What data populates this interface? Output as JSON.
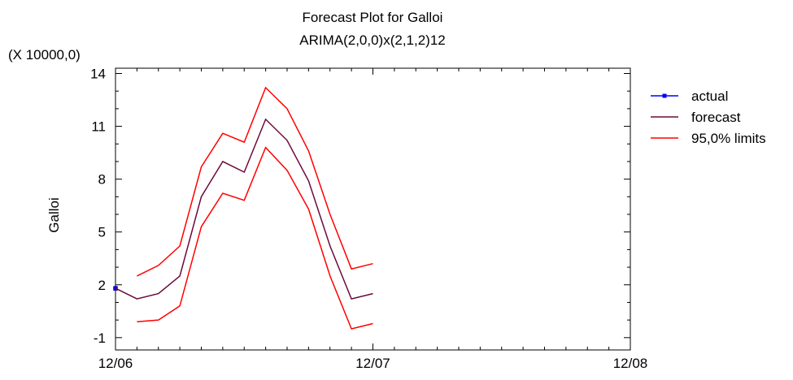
{
  "chart_data": {
    "type": "line",
    "title": "Forecast Plot for Galloi",
    "subtitle": "ARIMA(2,0,0)x(2,1,2)12",
    "ylabel": "Galloi",
    "xlabel": "",
    "y_scale_note": "(X 10000,0)",
    "ylim": [
      -1.7,
      14.3
    ],
    "xlim": [
      0,
      24
    ],
    "x_ticks": [
      {
        "value": 0,
        "label": "12/06"
      },
      {
        "value": 12,
        "label": "12/07"
      },
      {
        "value": 24,
        "label": "12/08"
      }
    ],
    "y_ticks": [
      {
        "value": -1,
        "label": "-1"
      },
      {
        "value": 2,
        "label": "2"
      },
      {
        "value": 5,
        "label": "5"
      },
      {
        "value": 8,
        "label": "8"
      },
      {
        "value": 11,
        "label": "11"
      },
      {
        "value": 14,
        "label": "14"
      }
    ],
    "legend_position": "right",
    "series": [
      {
        "name": "actual",
        "color": "#0000ff",
        "marker": "square",
        "x": [
          0
        ],
        "values": [
          1.8
        ]
      },
      {
        "name": "forecast",
        "color": "#6b0a3a",
        "x": [
          0,
          1,
          2,
          3,
          4,
          5,
          6,
          7,
          8,
          9,
          10,
          11,
          12
        ],
        "values": [
          1.8,
          1.2,
          1.5,
          2.5,
          7.0,
          9.0,
          8.4,
          11.4,
          10.2,
          7.9,
          4.2,
          1.2,
          1.5
        ]
      },
      {
        "name": "95,0% limits",
        "color": "#ff0000",
        "x": [
          1,
          2,
          3,
          4,
          5,
          6,
          7,
          8,
          9,
          10,
          11,
          12
        ],
        "values": [
          2.5,
          3.1,
          4.2,
          8.7,
          10.6,
          10.1,
          13.2,
          12.0,
          9.6,
          6.0,
          2.9,
          3.2
        ]
      },
      {
        "name": "",
        "color": "#ff0000",
        "x": [
          1,
          2,
          3,
          4,
          5,
          6,
          7,
          8,
          9,
          10,
          11,
          12
        ],
        "values": [
          -0.1,
          0.0,
          0.8,
          5.3,
          7.2,
          6.8,
          9.8,
          8.5,
          6.3,
          2.5,
          -0.5,
          -0.2
        ]
      }
    ]
  }
}
